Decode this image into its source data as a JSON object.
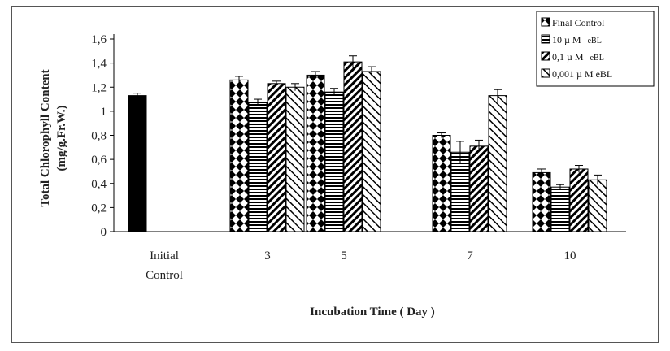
{
  "chart_data": {
    "type": "bar",
    "xlabel": "Incubation Time ( Day )",
    "ylabel_line1": "Total Chlorophyll Content",
    "ylabel_line2": "(mg/g.Fr.W.)",
    "ylim": [
      0,
      1.6
    ],
    "yticks": [
      "0",
      "0,2",
      "0,4",
      "0,6",
      "0,8",
      "1",
      "1,2",
      "1,4",
      "1,6"
    ],
    "ytick_values": [
      0,
      0.2,
      0.4,
      0.6,
      0.8,
      1.0,
      1.2,
      1.4,
      1.6
    ],
    "grid": false,
    "legend_position": "top-right",
    "initial": {
      "label_line1": "Initial",
      "label_line2": "Control",
      "value": 1.13,
      "error": 0.02,
      "color": "#000000"
    },
    "categories": [
      "3",
      "5",
      "7",
      "10"
    ],
    "series": [
      {
        "name": "Final Control",
        "pattern": "diamonds",
        "values": [
          1.26,
          1.3,
          0.8,
          0.49
        ],
        "errors": [
          0.03,
          0.03,
          0.02,
          0.03
        ]
      },
      {
        "name": "10 µM eBL",
        "pattern": "hlines",
        "values": [
          1.07,
          1.16,
          0.66,
          0.37
        ],
        "errors": [
          0.03,
          0.03,
          0.09,
          0.02
        ]
      },
      {
        "name": "0,1 µM eBL",
        "pattern": "diagonal-dense",
        "values": [
          1.23,
          1.41,
          0.71,
          0.52
        ],
        "errors": [
          0.02,
          0.05,
          0.05,
          0.03
        ]
      },
      {
        "name": "0,001 µM eBL",
        "pattern": "diagonal-light",
        "values": [
          1.2,
          1.33,
          1.13,
          0.43
        ],
        "errors": [
          0.03,
          0.04,
          0.05,
          0.04
        ]
      }
    ],
    "legend_labels": [
      {
        "main": "Final Control",
        "suffix": ""
      },
      {
        "main": "10 µ M",
        "suffix": "eBL"
      },
      {
        "main": "0,1 µ M",
        "suffix": "eBL"
      },
      {
        "main": "0,001 µ M eBL",
        "suffix": ""
      }
    ]
  }
}
